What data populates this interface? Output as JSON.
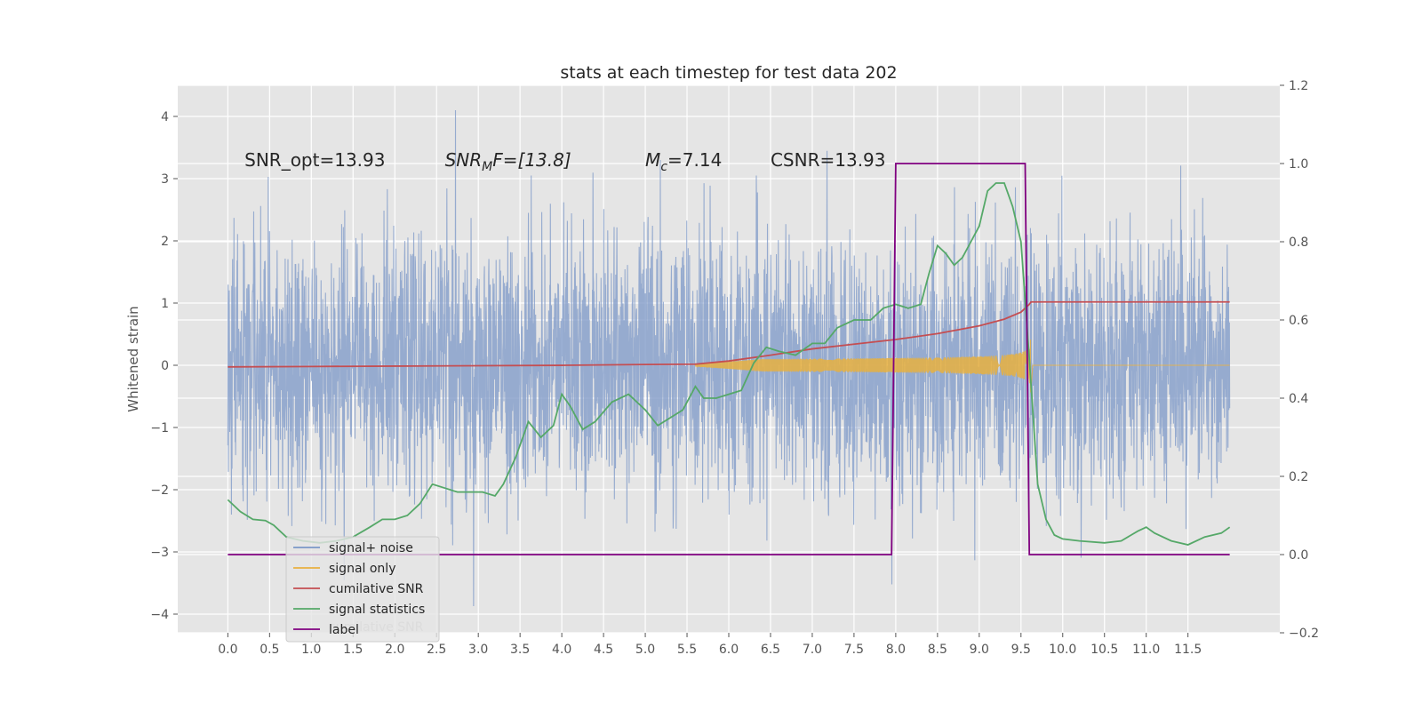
{
  "chart_data": {
    "type": "line",
    "title": "stats at each timestep for test data 202",
    "ylabel": "Whitened strain",
    "xlabel": "",
    "xlim": [
      -0.6,
      12.6
    ],
    "ylim": [
      -4.3,
      4.5
    ],
    "y2lim": [
      -0.2,
      1.2
    ],
    "x_ticks": [
      "0.0",
      "0.5",
      "1.0",
      "1.5",
      "2.0",
      "2.5",
      "3.0",
      "3.5",
      "4.0",
      "4.5",
      "5.0",
      "5.5",
      "6.0",
      "6.5",
      "7.0",
      "7.5",
      "8.0",
      "8.5",
      "9.0",
      "9.5",
      "10.0",
      "10.5",
      "11.0",
      "11.5"
    ],
    "y_ticks": [
      "4",
      "3",
      "2",
      "1",
      "0",
      "−1",
      "−2",
      "−3",
      "−4"
    ],
    "y2_ticks": [
      "1.2",
      "1.0",
      "0.8",
      "0.6",
      "0.4",
      "0.2",
      "0.0",
      "−0.2"
    ],
    "grid": true,
    "legend_position": "lower-left",
    "annotations": [
      {
        "pre": "SNR_opt=13.93",
        "it": "",
        "sub": "",
        "post": "",
        "x": 0.2,
        "y": 3.3
      },
      {
        "pre": "",
        "it": "SNR",
        "sub": "M",
        "post": "F=[13.8]",
        "x": 2.6,
        "y": 3.3
      },
      {
        "pre": "",
        "it": "M",
        "sub": "c",
        "post": "=7.14",
        "x": 5.0,
        "y": 3.3
      },
      {
        "pre": "CSNR=13.93",
        "it": "",
        "sub": "",
        "post": "",
        "x": 6.5,
        "y": 3.3
      }
    ],
    "legend_ghost_text": "cumilative SNR",
    "series": [
      {
        "name": "signal+ noise",
        "axis": "left",
        "color": "#7b97c7",
        "kind": "noise",
        "x_range": [
          0.0,
          12.0
        ],
        "std": 1.0,
        "ylim_clip": [
          -3.95,
          4.1
        ]
      },
      {
        "name": "signal only",
        "axis": "left",
        "color": "#e8b040",
        "kind": "chirp",
        "t_start": 5.6,
        "t_end": 9.62,
        "x_range": [
          5.6,
          12.0
        ]
      },
      {
        "name": "cumilative SNR",
        "axis": "right",
        "color": "#c44e52",
        "x": [
          0.0,
          1.0,
          2.0,
          3.0,
          4.0,
          5.0,
          5.6,
          6.0,
          6.5,
          7.0,
          7.5,
          8.0,
          8.5,
          9.0,
          9.3,
          9.5,
          9.6,
          9.62,
          10.0,
          11.0,
          12.0
        ],
        "y": [
          0.48,
          0.481,
          0.482,
          0.483,
          0.484,
          0.486,
          0.487,
          0.495,
          0.51,
          0.526,
          0.538,
          0.55,
          0.565,
          0.585,
          0.602,
          0.62,
          0.64,
          0.646,
          0.646,
          0.646,
          0.646
        ]
      },
      {
        "name": "signal statistics",
        "axis": "right",
        "color": "#55a868",
        "x": [
          0.0,
          0.15,
          0.3,
          0.45,
          0.55,
          0.7,
          0.9,
          1.1,
          1.3,
          1.5,
          1.7,
          1.85,
          2.0,
          2.15,
          2.3,
          2.45,
          2.6,
          2.75,
          2.9,
          3.05,
          3.2,
          3.3,
          3.45,
          3.6,
          3.75,
          3.9,
          4.0,
          4.1,
          4.25,
          4.4,
          4.6,
          4.8,
          5.0,
          5.15,
          5.3,
          5.45,
          5.6,
          5.7,
          5.85,
          6.0,
          6.15,
          6.3,
          6.45,
          6.6,
          6.8,
          7.0,
          7.15,
          7.3,
          7.5,
          7.7,
          7.85,
          8.0,
          8.15,
          8.3,
          8.4,
          8.5,
          8.6,
          8.7,
          8.8,
          8.9,
          9.0,
          9.1,
          9.2,
          9.3,
          9.4,
          9.5,
          9.6,
          9.7,
          9.8,
          9.9,
          10.0,
          10.2,
          10.5,
          10.7,
          10.9,
          11.0,
          11.1,
          11.3,
          11.5,
          11.7,
          11.9,
          12.0
        ],
        "y": [
          0.14,
          0.11,
          0.09,
          0.087,
          0.075,
          0.045,
          0.035,
          0.03,
          0.035,
          0.045,
          0.07,
          0.09,
          0.09,
          0.1,
          0.13,
          0.18,
          0.17,
          0.16,
          0.16,
          0.16,
          0.15,
          0.18,
          0.25,
          0.34,
          0.3,
          0.33,
          0.41,
          0.38,
          0.32,
          0.34,
          0.39,
          0.41,
          0.37,
          0.33,
          0.35,
          0.37,
          0.43,
          0.4,
          0.4,
          0.41,
          0.42,
          0.49,
          0.53,
          0.52,
          0.51,
          0.54,
          0.54,
          0.58,
          0.6,
          0.6,
          0.63,
          0.64,
          0.63,
          0.64,
          0.72,
          0.79,
          0.77,
          0.74,
          0.76,
          0.8,
          0.84,
          0.93,
          0.95,
          0.95,
          0.89,
          0.8,
          0.5,
          0.18,
          0.09,
          0.05,
          0.04,
          0.035,
          0.03,
          0.035,
          0.06,
          0.07,
          0.055,
          0.035,
          0.025,
          0.045,
          0.055,
          0.07
        ]
      },
      {
        "name": "label",
        "axis": "right",
        "color": "#800080",
        "x": [
          0.0,
          7.95,
          8.0,
          9.55,
          9.6,
          12.0
        ],
        "y": [
          0.0,
          0.0,
          1.0,
          1.0,
          0.0,
          0.0
        ]
      }
    ]
  }
}
